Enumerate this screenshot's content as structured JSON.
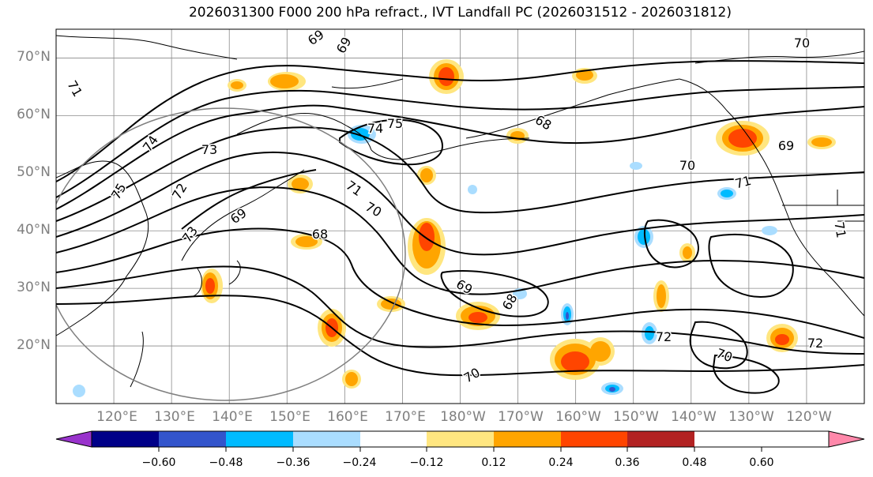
{
  "title": "2026031300 F000 200 hPa refract., IVT Landfall PC (2026031512 - 2026031812)",
  "lat_labels": [
    "70°N",
    "60°N",
    "50°N",
    "40°N",
    "30°N",
    "20°N"
  ],
  "lon_labels": [
    "120°E",
    "130°E",
    "140°E",
    "150°E",
    "160°E",
    "170°E",
    "180°W",
    "170°W",
    "160°W",
    "150°W",
    "140°W",
    "130°W",
    "120°W"
  ],
  "contour_labels": [
    "69",
    "69",
    "70",
    "71",
    "75",
    "74",
    "72",
    "73",
    "74",
    "75",
    "71",
    "70",
    "71",
    "69",
    "68",
    "68",
    "68",
    "69",
    "70",
    "72",
    "70",
    "72",
    "69",
    "70",
    "71",
    "73"
  ],
  "colorbar": {
    "ticks": [
      "−0.60",
      "−0.48",
      "−0.36",
      "−0.24",
      "−0.12",
      "0.12",
      "0.24",
      "0.36",
      "0.48",
      "0.60"
    ],
    "colors": [
      "#9933cc",
      "#000088",
      "#3355cc",
      "#00bbff",
      "#aaddff",
      "#ffffff",
      "#ffe680",
      "#ffa500",
      "#ff4500",
      "#b22222",
      "#ff88aa"
    ]
  },
  "chart_data": {
    "type": "map",
    "title": "2026031300 F000 200 hPa refract., IVT Landfall PC (2026031512 - 2026031812)",
    "field_contoured": "200 hPa refractivity (black contours)",
    "field_shaded": "IVT landfall principal component correlation",
    "lon_range": [
      110,
      250
    ],
    "lat_range": [
      10,
      75
    ],
    "contour_levels_labeled": [
      68,
      69,
      70,
      71,
      72,
      73,
      74,
      75
    ],
    "shading_levels": [
      -0.6,
      -0.48,
      -0.36,
      -0.24,
      -0.12,
      0.12,
      0.24,
      0.36,
      0.48,
      0.6
    ]
  }
}
